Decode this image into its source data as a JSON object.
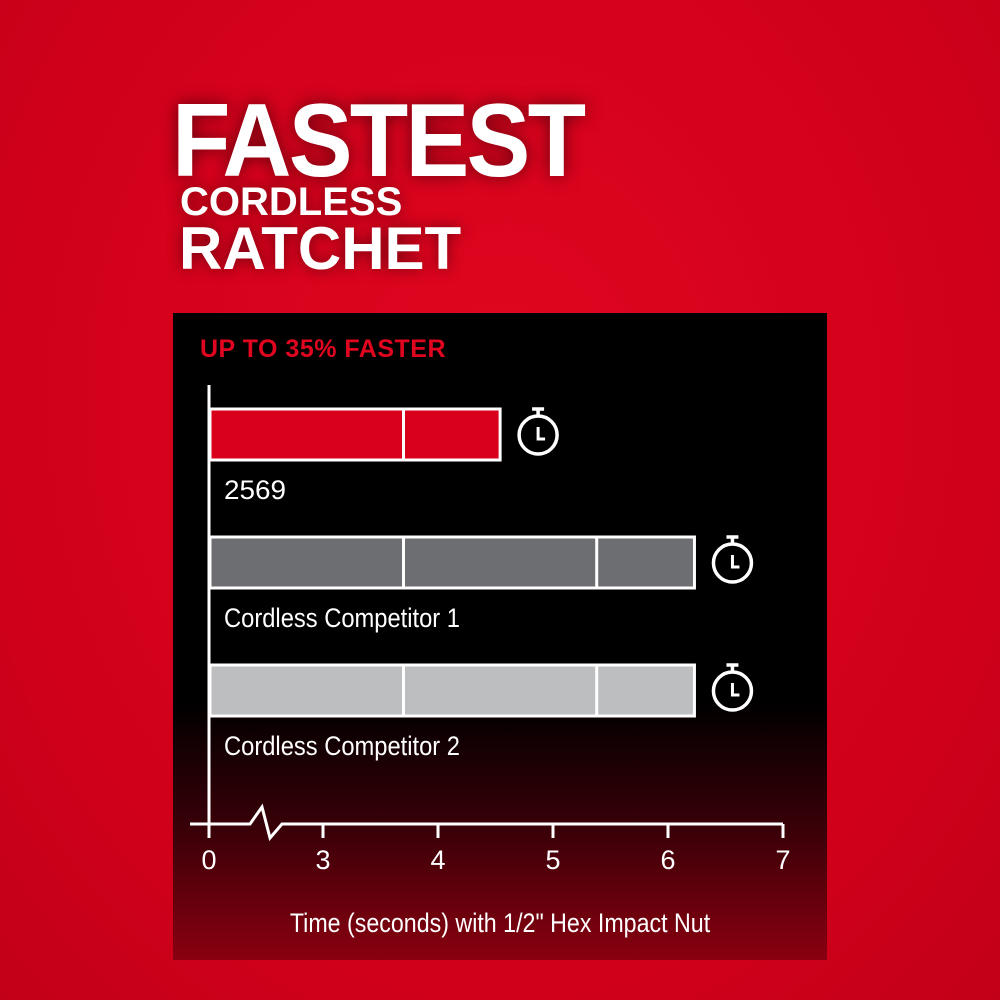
{
  "headline": {
    "line1": "FASTEST",
    "line2": "CORDLESS",
    "line3": "RATCHET"
  },
  "chart_data": {
    "type": "bar",
    "orientation": "horizontal",
    "title": "UP TO 35% FASTER",
    "xlabel": "Time (seconds) with 1/2\" Hex Impact Nut",
    "x_ticks": [
      0,
      3,
      4,
      5,
      6,
      7
    ],
    "x_tick_labels": [
      "0",
      "3",
      "4",
      "5",
      "6",
      "7"
    ],
    "axis_break": "between 0 and 3",
    "xlim": [
      0,
      7
    ],
    "categories": [
      "2569",
      "Cordless Competitor 1",
      "Cordless Competitor 2"
    ],
    "values": [
      4.54,
      6.23,
      6.23
    ],
    "colors": [
      "#d9001b",
      "#6d6e71",
      "#bcbec0"
    ],
    "icon": "stopwatch-icon",
    "grid": false
  }
}
